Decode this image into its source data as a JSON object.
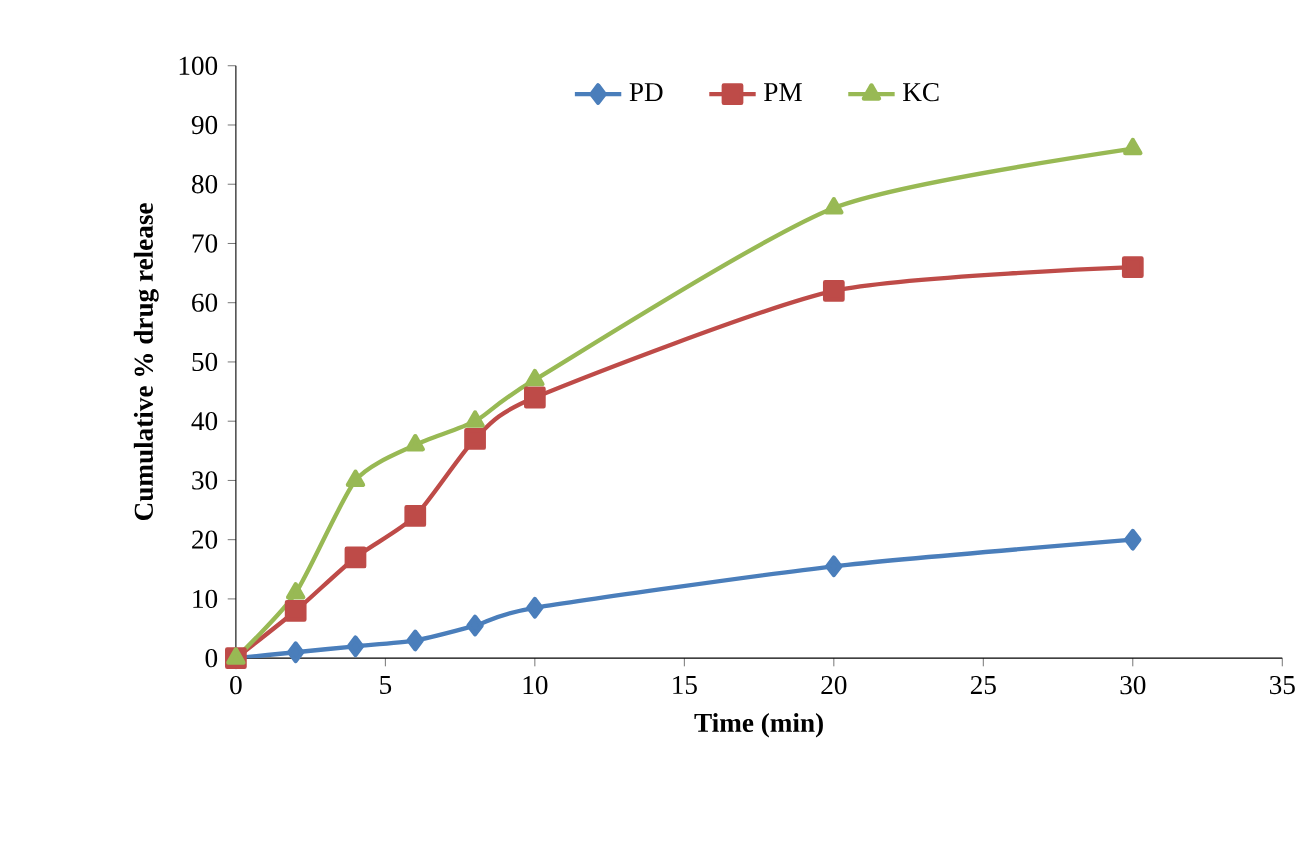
{
  "chart_data": {
    "type": "line",
    "xlabel": "Time (min)",
    "ylabel": "Cumulative % drug release",
    "x": [
      0,
      2,
      4,
      6,
      8,
      10,
      20,
      30
    ],
    "series": [
      {
        "name": "PD",
        "color": "#4a7ebb",
        "marker": "diamond",
        "values": [
          0,
          1,
          2,
          3,
          5.5,
          8.5,
          15.5,
          20
        ]
      },
      {
        "name": "PM",
        "color": "#be4b48",
        "marker": "square",
        "values": [
          0,
          8,
          17,
          24,
          37,
          44,
          62,
          66
        ]
      },
      {
        "name": "KC",
        "color": "#98b954",
        "marker": "triangle",
        "values": [
          0,
          11,
          30,
          36,
          40,
          47,
          76,
          86
        ]
      }
    ],
    "xlim": [
      0,
      35
    ],
    "xticks": [
      0,
      5,
      10,
      15,
      20,
      25,
      30,
      35
    ],
    "ylim": [
      0,
      100
    ],
    "yticks": [
      0,
      10,
      20,
      30,
      40,
      50,
      60,
      70,
      80,
      90,
      100
    ],
    "grid": false,
    "legend": "top",
    "line_style": "solid"
  }
}
